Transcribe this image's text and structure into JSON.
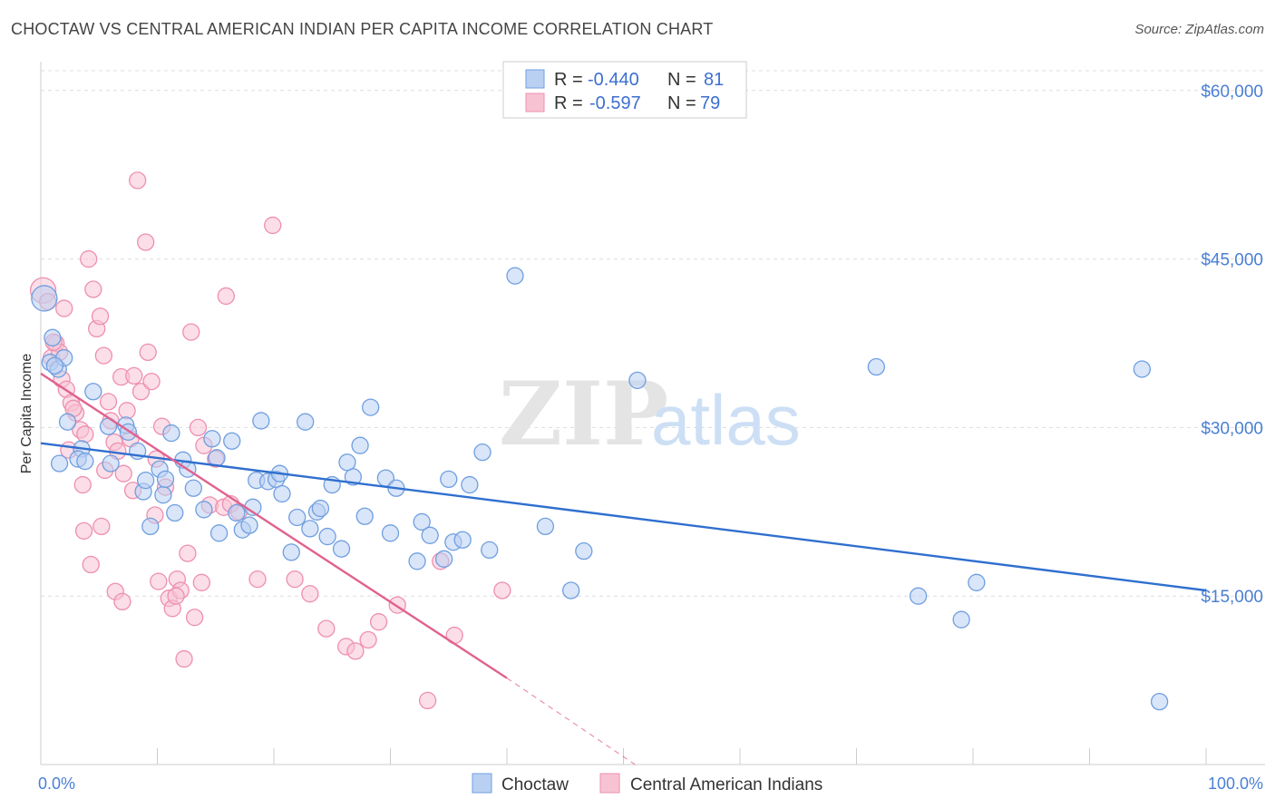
{
  "title": "CHOCTAW VS CENTRAL AMERICAN INDIAN PER CAPITA INCOME CORRELATION CHART",
  "source": "Source: ZipAtlas.com",
  "colors": {
    "choctaw": "#6f9fe0",
    "choctaw_fill": "#b9d0f2",
    "choctaw_line": "#2f6fcf",
    "cai": "#ee8fb0",
    "cai_fill": "#f7c3d3",
    "cai_line": "#e0628e"
  },
  "legend": {
    "rows": [
      {
        "r_label": "R =",
        "r_value": "-0.440",
        "n_label": "N =",
        "n_value": "81"
      },
      {
        "r_label": "R =",
        "r_value": "-0.597",
        "n_label": "N =",
        "n_value": "79"
      }
    ]
  },
  "bottom_legend": [
    "Choctaw",
    "Central American Indians"
  ],
  "chart_data": {
    "type": "scatter",
    "xlabel": "",
    "ylabel": "Per Capita Income",
    "xlim": [
      0,
      100
    ],
    "ylim": [
      0,
      62000
    ],
    "x_tick_labels": [
      "0.0%",
      "100.0%"
    ],
    "y_ticks": [
      15000,
      30000,
      45000,
      60000
    ],
    "y_tick_labels": [
      "$15,000",
      "$30,000",
      "$45,000",
      "$60,000"
    ],
    "grid": true,
    "series": [
      {
        "name": "Choctaw",
        "trend": {
          "x": [
            0,
            100
          ],
          "y": [
            28600,
            15500
          ]
        },
        "points": [
          [
            0.3,
            41500
          ],
          [
            0.8,
            35800
          ],
          [
            1.5,
            35200
          ],
          [
            2.0,
            36200
          ],
          [
            1.0,
            38000
          ],
          [
            4.5,
            33200
          ],
          [
            2.3,
            30500
          ],
          [
            3.5,
            28100
          ],
          [
            3.2,
            27200
          ],
          [
            3.8,
            27000
          ],
          [
            1.6,
            26800
          ],
          [
            5.8,
            30100
          ],
          [
            7.3,
            30200
          ],
          [
            7.5,
            29600
          ],
          [
            8.3,
            27900
          ],
          [
            8.8,
            24300
          ],
          [
            9.0,
            25300
          ],
          [
            9.4,
            21200
          ],
          [
            10.2,
            26300
          ],
          [
            10.5,
            24000
          ],
          [
            10.7,
            25400
          ],
          [
            11.2,
            29500
          ],
          [
            11.5,
            22400
          ],
          [
            12.2,
            27100
          ],
          [
            12.6,
            26300
          ],
          [
            13.1,
            24600
          ],
          [
            14.0,
            22700
          ],
          [
            14.7,
            29000
          ],
          [
            15.1,
            27300
          ],
          [
            15.3,
            20600
          ],
          [
            16.4,
            28800
          ],
          [
            16.8,
            22400
          ],
          [
            17.3,
            20900
          ],
          [
            17.9,
            21300
          ],
          [
            18.2,
            22900
          ],
          [
            18.5,
            25300
          ],
          [
            18.9,
            30600
          ],
          [
            19.5,
            25200
          ],
          [
            20.2,
            25400
          ],
          [
            20.5,
            25900
          ],
          [
            20.7,
            24100
          ],
          [
            21.5,
            18900
          ],
          [
            22.0,
            22000
          ],
          [
            22.7,
            30500
          ],
          [
            23.1,
            21000
          ],
          [
            23.7,
            22500
          ],
          [
            24.0,
            22800
          ],
          [
            24.6,
            20300
          ],
          [
            25.0,
            24900
          ],
          [
            25.8,
            19200
          ],
          [
            26.3,
            26900
          ],
          [
            26.8,
            25600
          ],
          [
            27.4,
            28400
          ],
          [
            27.8,
            22100
          ],
          [
            28.3,
            31800
          ],
          [
            29.6,
            25500
          ],
          [
            30.0,
            20600
          ],
          [
            30.5,
            24600
          ],
          [
            32.3,
            18100
          ],
          [
            32.7,
            21600
          ],
          [
            33.4,
            20400
          ],
          [
            34.6,
            18300
          ],
          [
            35.0,
            25400
          ],
          [
            35.4,
            19800
          ],
          [
            36.2,
            20000
          ],
          [
            36.8,
            24900
          ],
          [
            37.9,
            27800
          ],
          [
            38.5,
            19100
          ],
          [
            40.7,
            43500
          ],
          [
            43.3,
            21200
          ],
          [
            45.5,
            15500
          ],
          [
            46.6,
            19000
          ],
          [
            51.2,
            34200
          ],
          [
            71.7,
            35400
          ],
          [
            75.3,
            15000
          ],
          [
            79.0,
            12900
          ],
          [
            80.3,
            16200
          ],
          [
            94.5,
            35200
          ],
          [
            96.0,
            5600
          ],
          [
            1.2,
            35500
          ],
          [
            6.0,
            26800
          ]
        ]
      },
      {
        "name": "Central American Indians",
        "trend": {
          "x": [
            0,
            40
          ],
          "y": [
            34800,
            7700
          ]
        },
        "trend_dashed": {
          "x": [
            40,
            51
          ],
          "y": [
            7700,
            0
          ]
        },
        "points": [
          [
            0.2,
            42200
          ],
          [
            0.6,
            41200
          ],
          [
            0.9,
            36200
          ],
          [
            1.3,
            37500
          ],
          [
            1.6,
            36700
          ],
          [
            1.8,
            34300
          ],
          [
            2.2,
            33400
          ],
          [
            2.6,
            32200
          ],
          [
            3.0,
            31300
          ],
          [
            3.4,
            29800
          ],
          [
            3.8,
            29400
          ],
          [
            4.1,
            45000
          ],
          [
            4.5,
            42300
          ],
          [
            4.8,
            38800
          ],
          [
            5.1,
            39900
          ],
          [
            5.4,
            36400
          ],
          [
            5.8,
            32300
          ],
          [
            6.0,
            30600
          ],
          [
            6.3,
            28700
          ],
          [
            6.6,
            27900
          ],
          [
            6.9,
            34500
          ],
          [
            7.1,
            25900
          ],
          [
            7.4,
            31500
          ],
          [
            7.7,
            29000
          ],
          [
            7.9,
            24400
          ],
          [
            8.3,
            52000
          ],
          [
            8.6,
            33200
          ],
          [
            9.0,
            46500
          ],
          [
            9.2,
            36700
          ],
          [
            9.5,
            34100
          ],
          [
            9.8,
            22200
          ],
          [
            10.1,
            16300
          ],
          [
            10.4,
            30100
          ],
          [
            10.7,
            24700
          ],
          [
            11.0,
            14800
          ],
          [
            11.3,
            13900
          ],
          [
            11.7,
            16500
          ],
          [
            12.0,
            15500
          ],
          [
            12.3,
            9400
          ],
          [
            12.6,
            18800
          ],
          [
            12.9,
            38500
          ],
          [
            13.2,
            13100
          ],
          [
            13.5,
            30000
          ],
          [
            14.0,
            28400
          ],
          [
            14.5,
            23100
          ],
          [
            15.0,
            27200
          ],
          [
            15.7,
            22900
          ],
          [
            15.9,
            41700
          ],
          [
            16.3,
            23200
          ],
          [
            17.0,
            22500
          ],
          [
            18.6,
            16500
          ],
          [
            19.9,
            48000
          ],
          [
            21.8,
            16500
          ],
          [
            23.1,
            15200
          ],
          [
            24.5,
            12100
          ],
          [
            26.2,
            10500
          ],
          [
            27.0,
            10100
          ],
          [
            28.1,
            11100
          ],
          [
            29.0,
            12700
          ],
          [
            30.6,
            14200
          ],
          [
            33.2,
            5700
          ],
          [
            34.3,
            18100
          ],
          [
            35.5,
            11500
          ],
          [
            39.6,
            15500
          ],
          [
            2.0,
            40600
          ],
          [
            3.6,
            24900
          ],
          [
            4.3,
            17800
          ],
          [
            5.2,
            21200
          ],
          [
            6.4,
            15400
          ],
          [
            7.0,
            14500
          ],
          [
            1.1,
            37600
          ],
          [
            2.8,
            31700
          ],
          [
            3.7,
            20800
          ],
          [
            5.5,
            26200
          ],
          [
            8.0,
            34600
          ],
          [
            9.9,
            27200
          ],
          [
            11.6,
            15000
          ],
          [
            13.8,
            16200
          ],
          [
            2.4,
            28000
          ]
        ]
      }
    ]
  }
}
